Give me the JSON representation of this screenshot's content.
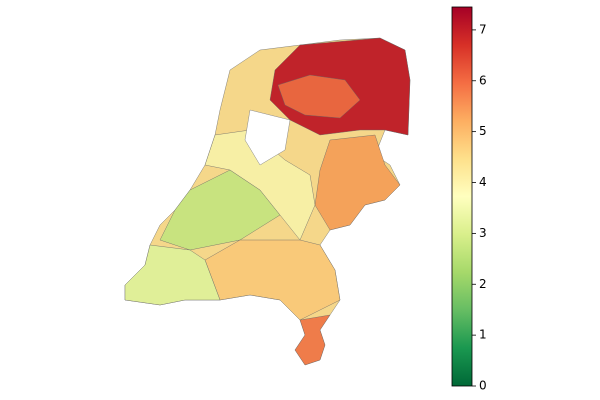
{
  "colorbar": {
    "range": [
      0,
      7.45
    ],
    "ticks": [
      0,
      1,
      2,
      3,
      4,
      5,
      6,
      7
    ]
  }
}
